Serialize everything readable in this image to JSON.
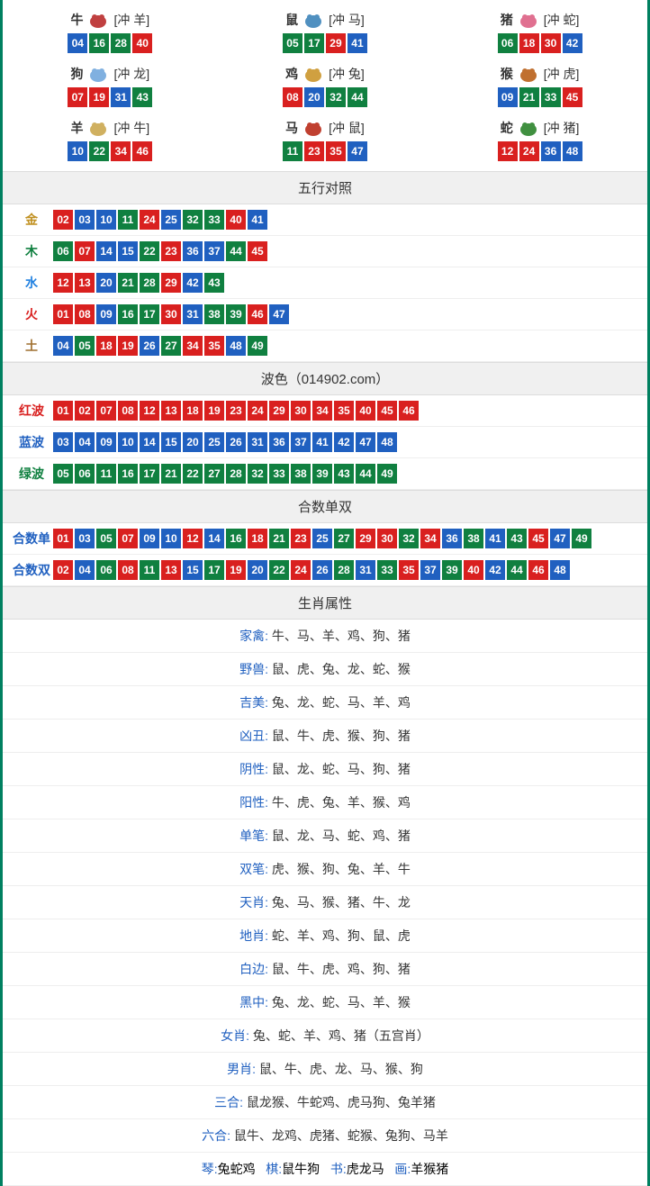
{
  "colors": {
    "red": "#d9201f",
    "blue": "#2060c0",
    "green": "#108040"
  },
  "zodiac": [
    {
      "name": "牛",
      "clash": "[冲 羊]",
      "icon_color": "#c04040",
      "balls": [
        {
          "n": "04",
          "c": "blue"
        },
        {
          "n": "16",
          "c": "green"
        },
        {
          "n": "28",
          "c": "green"
        },
        {
          "n": "40",
          "c": "red"
        }
      ]
    },
    {
      "name": "鼠",
      "clash": "[冲 马]",
      "icon_color": "#5090c0",
      "balls": [
        {
          "n": "05",
          "c": "green"
        },
        {
          "n": "17",
          "c": "green"
        },
        {
          "n": "29",
          "c": "red"
        },
        {
          "n": "41",
          "c": "blue"
        }
      ]
    },
    {
      "name": "猪",
      "clash": "[冲 蛇]",
      "icon_color": "#e07090",
      "balls": [
        {
          "n": "06",
          "c": "green"
        },
        {
          "n": "18",
          "c": "red"
        },
        {
          "n": "30",
          "c": "red"
        },
        {
          "n": "42",
          "c": "blue"
        }
      ]
    },
    {
      "name": "狗",
      "clash": "[冲 龙]",
      "icon_color": "#80b0e0",
      "balls": [
        {
          "n": "07",
          "c": "red"
        },
        {
          "n": "19",
          "c": "red"
        },
        {
          "n": "31",
          "c": "blue"
        },
        {
          "n": "43",
          "c": "green"
        }
      ]
    },
    {
      "name": "鸡",
      "clash": "[冲 兔]",
      "icon_color": "#d0a040",
      "balls": [
        {
          "n": "08",
          "c": "red"
        },
        {
          "n": "20",
          "c": "blue"
        },
        {
          "n": "32",
          "c": "green"
        },
        {
          "n": "44",
          "c": "green"
        }
      ]
    },
    {
      "name": "猴",
      "clash": "[冲 虎]",
      "icon_color": "#c07030",
      "balls": [
        {
          "n": "09",
          "c": "blue"
        },
        {
          "n": "21",
          "c": "green"
        },
        {
          "n": "33",
          "c": "green"
        },
        {
          "n": "45",
          "c": "red"
        }
      ]
    },
    {
      "name": "羊",
      "clash": "[冲 牛]",
      "icon_color": "#d0b060",
      "balls": [
        {
          "n": "10",
          "c": "blue"
        },
        {
          "n": "22",
          "c": "green"
        },
        {
          "n": "34",
          "c": "red"
        },
        {
          "n": "46",
          "c": "red"
        }
      ]
    },
    {
      "name": "马",
      "clash": "[冲 鼠]",
      "icon_color": "#c04030",
      "balls": [
        {
          "n": "11",
          "c": "green"
        },
        {
          "n": "23",
          "c": "red"
        },
        {
          "n": "35",
          "c": "red"
        },
        {
          "n": "47",
          "c": "blue"
        }
      ]
    },
    {
      "name": "蛇",
      "clash": "[冲 猪]",
      "icon_color": "#409040",
      "balls": [
        {
          "n": "12",
          "c": "red"
        },
        {
          "n": "24",
          "c": "red"
        },
        {
          "n": "36",
          "c": "blue"
        },
        {
          "n": "48",
          "c": "blue"
        }
      ]
    }
  ],
  "sections": {
    "wuxing": {
      "title": "五行对照",
      "rows": [
        {
          "label": "金",
          "cls": "gold",
          "balls": [
            {
              "n": "02",
              "c": "red"
            },
            {
              "n": "03",
              "c": "blue"
            },
            {
              "n": "10",
              "c": "blue"
            },
            {
              "n": "11",
              "c": "green"
            },
            {
              "n": "24",
              "c": "red"
            },
            {
              "n": "25",
              "c": "blue"
            },
            {
              "n": "32",
              "c": "green"
            },
            {
              "n": "33",
              "c": "green"
            },
            {
              "n": "40",
              "c": "red"
            },
            {
              "n": "41",
              "c": "blue"
            }
          ]
        },
        {
          "label": "木",
          "cls": "wood",
          "balls": [
            {
              "n": "06",
              "c": "green"
            },
            {
              "n": "07",
              "c": "red"
            },
            {
              "n": "14",
              "c": "blue"
            },
            {
              "n": "15",
              "c": "blue"
            },
            {
              "n": "22",
              "c": "green"
            },
            {
              "n": "23",
              "c": "red"
            },
            {
              "n": "36",
              "c": "blue"
            },
            {
              "n": "37",
              "c": "blue"
            },
            {
              "n": "44",
              "c": "green"
            },
            {
              "n": "45",
              "c": "red"
            }
          ]
        },
        {
          "label": "水",
          "cls": "water",
          "balls": [
            {
              "n": "12",
              "c": "red"
            },
            {
              "n": "13",
              "c": "red"
            },
            {
              "n": "20",
              "c": "blue"
            },
            {
              "n": "21",
              "c": "green"
            },
            {
              "n": "28",
              "c": "green"
            },
            {
              "n": "29",
              "c": "red"
            },
            {
              "n": "42",
              "c": "blue"
            },
            {
              "n": "43",
              "c": "green"
            }
          ]
        },
        {
          "label": "火",
          "cls": "fire",
          "balls": [
            {
              "n": "01",
              "c": "red"
            },
            {
              "n": "08",
              "c": "red"
            },
            {
              "n": "09",
              "c": "blue"
            },
            {
              "n": "16",
              "c": "green"
            },
            {
              "n": "17",
              "c": "green"
            },
            {
              "n": "30",
              "c": "red"
            },
            {
              "n": "31",
              "c": "blue"
            },
            {
              "n": "38",
              "c": "green"
            },
            {
              "n": "39",
              "c": "green"
            },
            {
              "n": "46",
              "c": "red"
            },
            {
              "n": "47",
              "c": "blue"
            }
          ]
        },
        {
          "label": "土",
          "cls": "earth",
          "balls": [
            {
              "n": "04",
              "c": "blue"
            },
            {
              "n": "05",
              "c": "green"
            },
            {
              "n": "18",
              "c": "red"
            },
            {
              "n": "19",
              "c": "red"
            },
            {
              "n": "26",
              "c": "blue"
            },
            {
              "n": "27",
              "c": "green"
            },
            {
              "n": "34",
              "c": "red"
            },
            {
              "n": "35",
              "c": "red"
            },
            {
              "n": "48",
              "c": "blue"
            },
            {
              "n": "49",
              "c": "green"
            }
          ]
        }
      ]
    },
    "bose": {
      "title": "波色（014902.com）",
      "rows": [
        {
          "label": "红波",
          "cls": "redwave",
          "balls": [
            {
              "n": "01",
              "c": "red"
            },
            {
              "n": "02",
              "c": "red"
            },
            {
              "n": "07",
              "c": "red"
            },
            {
              "n": "08",
              "c": "red"
            },
            {
              "n": "12",
              "c": "red"
            },
            {
              "n": "13",
              "c": "red"
            },
            {
              "n": "18",
              "c": "red"
            },
            {
              "n": "19",
              "c": "red"
            },
            {
              "n": "23",
              "c": "red"
            },
            {
              "n": "24",
              "c": "red"
            },
            {
              "n": "29",
              "c": "red"
            },
            {
              "n": "30",
              "c": "red"
            },
            {
              "n": "34",
              "c": "red"
            },
            {
              "n": "35",
              "c": "red"
            },
            {
              "n": "40",
              "c": "red"
            },
            {
              "n": "45",
              "c": "red"
            },
            {
              "n": "46",
              "c": "red"
            }
          ]
        },
        {
          "label": "蓝波",
          "cls": "bluewave",
          "balls": [
            {
              "n": "03",
              "c": "blue"
            },
            {
              "n": "04",
              "c": "blue"
            },
            {
              "n": "09",
              "c": "blue"
            },
            {
              "n": "10",
              "c": "blue"
            },
            {
              "n": "14",
              "c": "blue"
            },
            {
              "n": "15",
              "c": "blue"
            },
            {
              "n": "20",
              "c": "blue"
            },
            {
              "n": "25",
              "c": "blue"
            },
            {
              "n": "26",
              "c": "blue"
            },
            {
              "n": "31",
              "c": "blue"
            },
            {
              "n": "36",
              "c": "blue"
            },
            {
              "n": "37",
              "c": "blue"
            },
            {
              "n": "41",
              "c": "blue"
            },
            {
              "n": "42",
              "c": "blue"
            },
            {
              "n": "47",
              "c": "blue"
            },
            {
              "n": "48",
              "c": "blue"
            }
          ]
        },
        {
          "label": "绿波",
          "cls": "greenwave",
          "balls": [
            {
              "n": "05",
              "c": "green"
            },
            {
              "n": "06",
              "c": "green"
            },
            {
              "n": "11",
              "c": "green"
            },
            {
              "n": "16",
              "c": "green"
            },
            {
              "n": "17",
              "c": "green"
            },
            {
              "n": "21",
              "c": "green"
            },
            {
              "n": "22",
              "c": "green"
            },
            {
              "n": "27",
              "c": "green"
            },
            {
              "n": "28",
              "c": "green"
            },
            {
              "n": "32",
              "c": "green"
            },
            {
              "n": "33",
              "c": "green"
            },
            {
              "n": "38",
              "c": "green"
            },
            {
              "n": "39",
              "c": "green"
            },
            {
              "n": "43",
              "c": "green"
            },
            {
              "n": "44",
              "c": "green"
            },
            {
              "n": "49",
              "c": "green"
            }
          ]
        }
      ]
    },
    "heshu": {
      "title": "合数单双",
      "rows": [
        {
          "label": "合数单",
          "cls": "bluewave",
          "balls": [
            {
              "n": "01",
              "c": "red"
            },
            {
              "n": "03",
              "c": "blue"
            },
            {
              "n": "05",
              "c": "green"
            },
            {
              "n": "07",
              "c": "red"
            },
            {
              "n": "09",
              "c": "blue"
            },
            {
              "n": "10",
              "c": "blue"
            },
            {
              "n": "12",
              "c": "red"
            },
            {
              "n": "14",
              "c": "blue"
            },
            {
              "n": "16",
              "c": "green"
            },
            {
              "n": "18",
              "c": "red"
            },
            {
              "n": "21",
              "c": "green"
            },
            {
              "n": "23",
              "c": "red"
            },
            {
              "n": "25",
              "c": "blue"
            },
            {
              "n": "27",
              "c": "green"
            },
            {
              "n": "29",
              "c": "red"
            },
            {
              "n": "30",
              "c": "red"
            },
            {
              "n": "32",
              "c": "green"
            },
            {
              "n": "34",
              "c": "red"
            },
            {
              "n": "36",
              "c": "blue"
            },
            {
              "n": "38",
              "c": "green"
            },
            {
              "n": "41",
              "c": "blue"
            },
            {
              "n": "43",
              "c": "green"
            },
            {
              "n": "45",
              "c": "red"
            },
            {
              "n": "47",
              "c": "blue"
            },
            {
              "n": "49",
              "c": "green"
            }
          ]
        },
        {
          "label": "合数双",
          "cls": "bluewave",
          "balls": [
            {
              "n": "02",
              "c": "red"
            },
            {
              "n": "04",
              "c": "blue"
            },
            {
              "n": "06",
              "c": "green"
            },
            {
              "n": "08",
              "c": "red"
            },
            {
              "n": "11",
              "c": "green"
            },
            {
              "n": "13",
              "c": "red"
            },
            {
              "n": "15",
              "c": "blue"
            },
            {
              "n": "17",
              "c": "green"
            },
            {
              "n": "19",
              "c": "red"
            },
            {
              "n": "20",
              "c": "blue"
            },
            {
              "n": "22",
              "c": "green"
            },
            {
              "n": "24",
              "c": "red"
            },
            {
              "n": "26",
              "c": "blue"
            },
            {
              "n": "28",
              "c": "green"
            },
            {
              "n": "31",
              "c": "blue"
            },
            {
              "n": "33",
              "c": "green"
            },
            {
              "n": "35",
              "c": "red"
            },
            {
              "n": "37",
              "c": "blue"
            },
            {
              "n": "39",
              "c": "green"
            },
            {
              "n": "40",
              "c": "red"
            },
            {
              "n": "42",
              "c": "blue"
            },
            {
              "n": "44",
              "c": "green"
            },
            {
              "n": "46",
              "c": "red"
            },
            {
              "n": "48",
              "c": "blue"
            }
          ]
        }
      ]
    }
  },
  "attrs": {
    "title": "生肖属性",
    "rows": [
      {
        "key": "家禽",
        "kc": "blue",
        "val": "牛、马、羊、鸡、狗、猪"
      },
      {
        "key": "野兽",
        "kc": "blue",
        "val": "鼠、虎、兔、龙、蛇、猴"
      },
      {
        "key": "吉美",
        "kc": "blue",
        "val": "兔、龙、蛇、马、羊、鸡"
      },
      {
        "key": "凶丑",
        "kc": "blue",
        "val": "鼠、牛、虎、猴、狗、猪"
      },
      {
        "key": "阴性",
        "kc": "blue",
        "val": "鼠、龙、蛇、马、狗、猪"
      },
      {
        "key": "阳性",
        "kc": "blue",
        "val": "牛、虎、兔、羊、猴、鸡"
      },
      {
        "key": "单笔",
        "kc": "blue",
        "val": "鼠、龙、马、蛇、鸡、猪"
      },
      {
        "key": "双笔",
        "kc": "blue",
        "val": "虎、猴、狗、兔、羊、牛"
      },
      {
        "key": "天肖",
        "kc": "blue",
        "val": "兔、马、猴、猪、牛、龙"
      },
      {
        "key": "地肖",
        "kc": "blue",
        "val": "蛇、羊、鸡、狗、鼠、虎"
      },
      {
        "key": "白边",
        "kc": "blue",
        "val": "鼠、牛、虎、鸡、狗、猪"
      },
      {
        "key": "黑中",
        "kc": "blue",
        "val": "兔、龙、蛇、马、羊、猴"
      },
      {
        "key": "女肖",
        "kc": "blue",
        "val": "兔、蛇、羊、鸡、猪（五宫肖）"
      },
      {
        "key": "男肖",
        "kc": "blue",
        "val": "鼠、牛、虎、龙、马、猴、狗"
      },
      {
        "key": "三合",
        "kc": "blue",
        "val": "鼠龙猴、牛蛇鸡、虎马狗、兔羊猪"
      },
      {
        "key": "六合",
        "kc": "blue",
        "val": "鼠牛、龙鸡、虎猪、蛇猴、兔狗、马羊"
      }
    ],
    "footer": [
      {
        "k": "琴",
        "v": "兔蛇鸡"
      },
      {
        "k": "棋",
        "v": "鼠牛狗"
      },
      {
        "k": "书",
        "v": "虎龙马"
      },
      {
        "k": "画",
        "v": "羊猴猪"
      }
    ]
  }
}
